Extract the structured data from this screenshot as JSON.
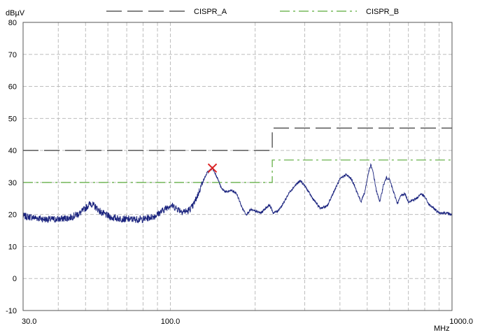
{
  "chart_data": {
    "type": "line",
    "xscale": "log",
    "xlim": [
      30,
      1000
    ],
    "ylim": [
      -10,
      80
    ],
    "grid": true,
    "legend_placement": "top",
    "y_unit": "dBµV",
    "x_unit": "MHz",
    "x_tick_labels": [
      {
        "value": 30,
        "label": "30.0"
      },
      {
        "value": 100,
        "label": "100.0"
      },
      {
        "value": 1000,
        "label": "1000.0"
      }
    ],
    "y_tick_labels": [
      {
        "value": 80,
        "label": "80"
      },
      {
        "value": 70,
        "label": "70"
      },
      {
        "value": 60,
        "label": "60"
      },
      {
        "value": 50,
        "label": "50"
      },
      {
        "value": 40,
        "label": "40"
      },
      {
        "value": 30,
        "label": "30"
      },
      {
        "value": 20,
        "label": "20"
      },
      {
        "value": 10,
        "label": "10"
      },
      {
        "value": 0,
        "label": "0"
      },
      {
        "value": -10,
        "label": "-10"
      }
    ],
    "legend": [
      {
        "name": "CISPR_A",
        "color": "#3a3a3a",
        "dash": "long"
      },
      {
        "name": "CISPR_B",
        "color": "#5aaa3a",
        "dash": "dashdot"
      }
    ],
    "limit_lines": [
      {
        "name": "CISPR_A",
        "color": "#3a3a3a",
        "points": [
          [
            30,
            40
          ],
          [
            230,
            40
          ],
          [
            230,
            47
          ],
          [
            1000,
            47
          ]
        ]
      },
      {
        "name": "CISPR_B",
        "color": "#5aaa3a",
        "points": [
          [
            30,
            30
          ],
          [
            230,
            30
          ],
          [
            230,
            37
          ],
          [
            1000,
            37
          ]
        ]
      }
    ],
    "measurement": {
      "color": "#1a237e",
      "points": [
        [
          30,
          19.5
        ],
        [
          33,
          19
        ],
        [
          36,
          18.5
        ],
        [
          40,
          18.5
        ],
        [
          44,
          19
        ],
        [
          48,
          20.5
        ],
        [
          50,
          22
        ],
        [
          52,
          23.5
        ],
        [
          54,
          22.5
        ],
        [
          57,
          20.5
        ],
        [
          62,
          19
        ],
        [
          70,
          18.5
        ],
        [
          80,
          18.5
        ],
        [
          88,
          19.5
        ],
        [
          95,
          21.5
        ],
        [
          100,
          23
        ],
        [
          105,
          22
        ],
        [
          110,
          21
        ],
        [
          115,
          21
        ],
        [
          120,
          22.5
        ],
        [
          125,
          26
        ],
        [
          130,
          30
        ],
        [
          135,
          33
        ],
        [
          141,
          34.5
        ],
        [
          146,
          32
        ],
        [
          152,
          28
        ],
        [
          158,
          27
        ],
        [
          165,
          27.5
        ],
        [
          172,
          26.5
        ],
        [
          180,
          22
        ],
        [
          186,
          20
        ],
        [
          193,
          21.5
        ],
        [
          200,
          21
        ],
        [
          210,
          20.5
        ],
        [
          218,
          22
        ],
        [
          225,
          23
        ],
        [
          232,
          20.5
        ],
        [
          240,
          21
        ],
        [
          250,
          23
        ],
        [
          265,
          27
        ],
        [
          280,
          29.5
        ],
        [
          290,
          30.5
        ],
        [
          300,
          29
        ],
        [
          320,
          25
        ],
        [
          340,
          22
        ],
        [
          360,
          22.5
        ],
        [
          380,
          27
        ],
        [
          400,
          31
        ],
        [
          420,
          32.5
        ],
        [
          440,
          31
        ],
        [
          460,
          27
        ],
        [
          475,
          24
        ],
        [
          490,
          27
        ],
        [
          505,
          33
        ],
        [
          515,
          35.5
        ],
        [
          525,
          33
        ],
        [
          540,
          27
        ],
        [
          555,
          24
        ],
        [
          570,
          29
        ],
        [
          585,
          31.5
        ],
        [
          600,
          31
        ],
        [
          620,
          27
        ],
        [
          640,
          23.5
        ],
        [
          660,
          26
        ],
        [
          680,
          26.5
        ],
        [
          700,
          24
        ],
        [
          725,
          24.5
        ],
        [
          750,
          25
        ],
        [
          775,
          26.5
        ],
        [
          800,
          25.5
        ],
        [
          830,
          23
        ],
        [
          860,
          22
        ],
        [
          900,
          20.5
        ],
        [
          940,
          20.5
        ],
        [
          1000,
          20
        ]
      ]
    },
    "marker": {
      "x": 141,
      "y": 34.5,
      "color": "#dd2222",
      "shape": "x"
    }
  }
}
